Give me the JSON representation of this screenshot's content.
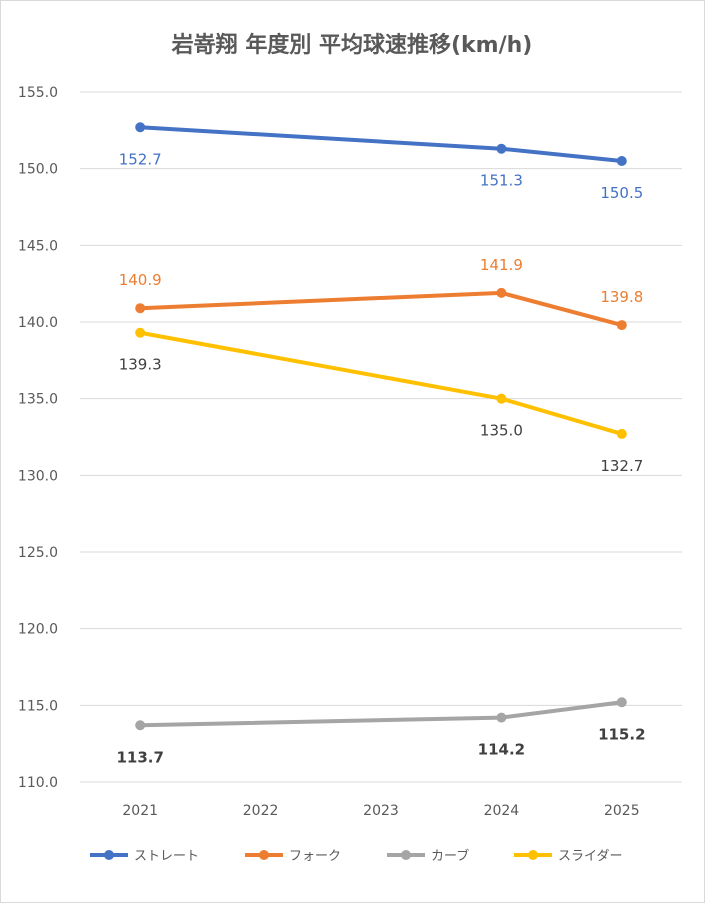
{
  "chart_data": {
    "type": "line",
    "title": "岩嵜翔 年度別 平均球速推移(km/h)",
    "categories": [
      "2021",
      "2022",
      "2023",
      "2024",
      "2025"
    ],
    "ylim": [
      110.0,
      155.0
    ],
    "yticks": [
      "110.0",
      "115.0",
      "120.0",
      "125.0",
      "130.0",
      "135.0",
      "140.0",
      "145.0",
      "150.0",
      "155.0"
    ],
    "grid": true,
    "legend_position": "bottom",
    "series": [
      {
        "name": "ストレート",
        "color": "#4472C4",
        "label_color": "#4472C4",
        "label_pos": "below",
        "label_bold": false,
        "points": [
          {
            "x": "2021",
            "y": 152.7
          },
          {
            "x": "2024",
            "y": 151.3
          },
          {
            "x": "2025",
            "y": 150.5
          }
        ]
      },
      {
        "name": "フォーク",
        "color": "#ED7D31",
        "label_color": "#ED7D31",
        "label_pos": "above",
        "label_bold": false,
        "points": [
          {
            "x": "2021",
            "y": 140.9
          },
          {
            "x": "2024",
            "y": 141.9
          },
          {
            "x": "2025",
            "y": 139.8
          }
        ]
      },
      {
        "name": "カーブ",
        "color": "#A5A5A5",
        "label_color": "#404040",
        "label_pos": "below",
        "label_bold": true,
        "points": [
          {
            "x": "2021",
            "y": 113.7
          },
          {
            "x": "2024",
            "y": 114.2
          },
          {
            "x": "2025",
            "y": 115.2
          }
        ]
      },
      {
        "name": "スライダー",
        "color": "#FFC000",
        "label_color": "#404040",
        "label_pos": "below",
        "label_bold": false,
        "points": [
          {
            "x": "2021",
            "y": 139.3
          },
          {
            "x": "2024",
            "y": 135.0
          },
          {
            "x": "2025",
            "y": 132.7
          }
        ]
      }
    ]
  }
}
